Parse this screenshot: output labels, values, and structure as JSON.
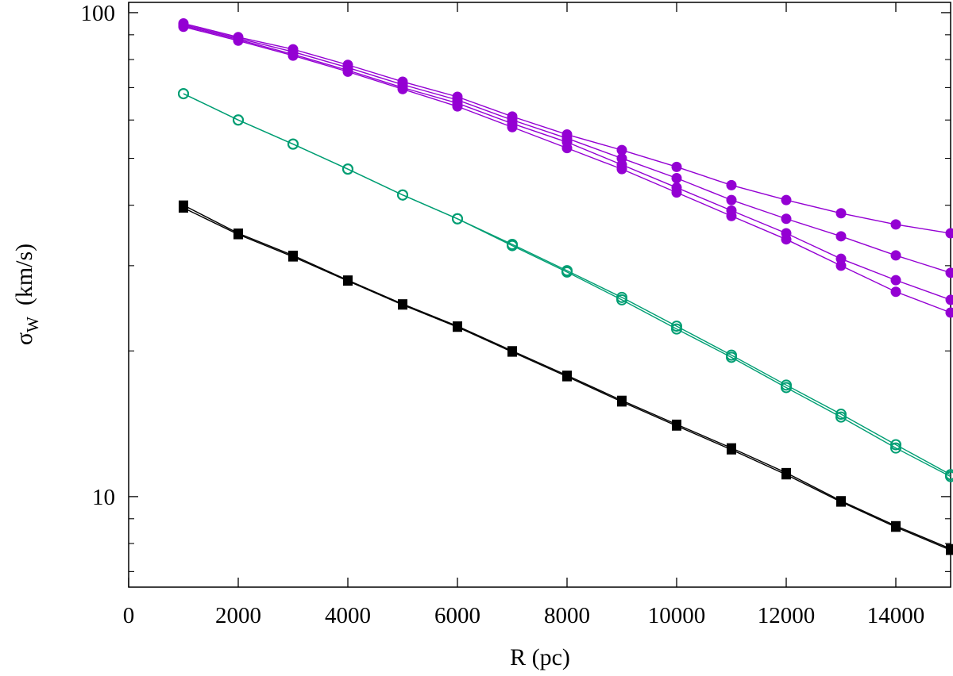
{
  "chart_data": {
    "type": "line",
    "xlabel": "R (pc)",
    "ylabel_symbol": "σ",
    "ylabel_subscript": "W",
    "ylabel_unit": "(km/s)",
    "xlim": [
      0,
      15000
    ],
    "ylim": [
      6.5,
      105
    ],
    "yscale": "log",
    "xticks": [
      0,
      2000,
      4000,
      6000,
      8000,
      10000,
      12000,
      14000
    ],
    "yticks_major": [
      10,
      100
    ],
    "yticks_minor": [
      7,
      8,
      9,
      20,
      30,
      40,
      50,
      60,
      70,
      80,
      90
    ],
    "grid": false,
    "colors": {
      "purple": "#9400d3",
      "green": "#009e73",
      "black": "#000000"
    },
    "x": [
      1000,
      2000,
      3000,
      4000,
      5000,
      6000,
      7000,
      8000,
      9000,
      10000,
      11000,
      12000,
      13000,
      14000,
      15000
    ],
    "series": [
      {
        "color": "purple",
        "marker": "filled-circle",
        "values": [
          95,
          89,
          84,
          78,
          72,
          67,
          61,
          56,
          52,
          48,
          44,
          41,
          38.5,
          36.5,
          35
        ]
      },
      {
        "color": "purple",
        "marker": "filled-circle",
        "values": [
          94.5,
          88.5,
          83,
          77,
          71,
          66,
          60,
          55,
          50,
          45.5,
          41,
          37.5,
          34.5,
          31.5,
          29
        ]
      },
      {
        "color": "purple",
        "marker": "filled-circle",
        "values": [
          94,
          88,
          82,
          76,
          70,
          65,
          59,
          54,
          48.5,
          43.5,
          39,
          35,
          31,
          28,
          25.5
        ]
      },
      {
        "color": "purple",
        "marker": "filled-circle",
        "values": [
          93.5,
          87.5,
          81.5,
          75.5,
          69.5,
          64,
          58,
          52.5,
          47.5,
          42.5,
          38,
          34,
          30,
          26.5,
          24
        ]
      },
      {
        "color": "green",
        "marker": "open-circle",
        "values": [
          68,
          60,
          53.5,
          47.5,
          42,
          37.5,
          33.2,
          29.3,
          25.8,
          22.5,
          19.6,
          17,
          14.8,
          12.8,
          11.1
        ]
      },
      {
        "color": "green",
        "marker": "open-circle",
        "values": [
          68,
          60,
          53.5,
          47.5,
          42,
          37.5,
          33.0,
          29.1,
          25.5,
          22.2,
          19.4,
          16.8,
          14.6,
          12.6,
          11.0
        ]
      },
      {
        "color": "black",
        "marker": "filled-square",
        "values": [
          40,
          35,
          31.5,
          28,
          25,
          22.5,
          20,
          17.8,
          15.8,
          14.1,
          12.6,
          11.2,
          9.8,
          8.7,
          7.8
        ]
      },
      {
        "color": "black",
        "marker": "filled-square",
        "values": [
          39.5,
          34.8,
          31.3,
          27.9,
          24.9,
          22.4,
          19.9,
          17.7,
          15.7,
          14.0,
          12.5,
          11.1,
          9.75,
          8.65,
          7.75
        ]
      }
    ]
  }
}
